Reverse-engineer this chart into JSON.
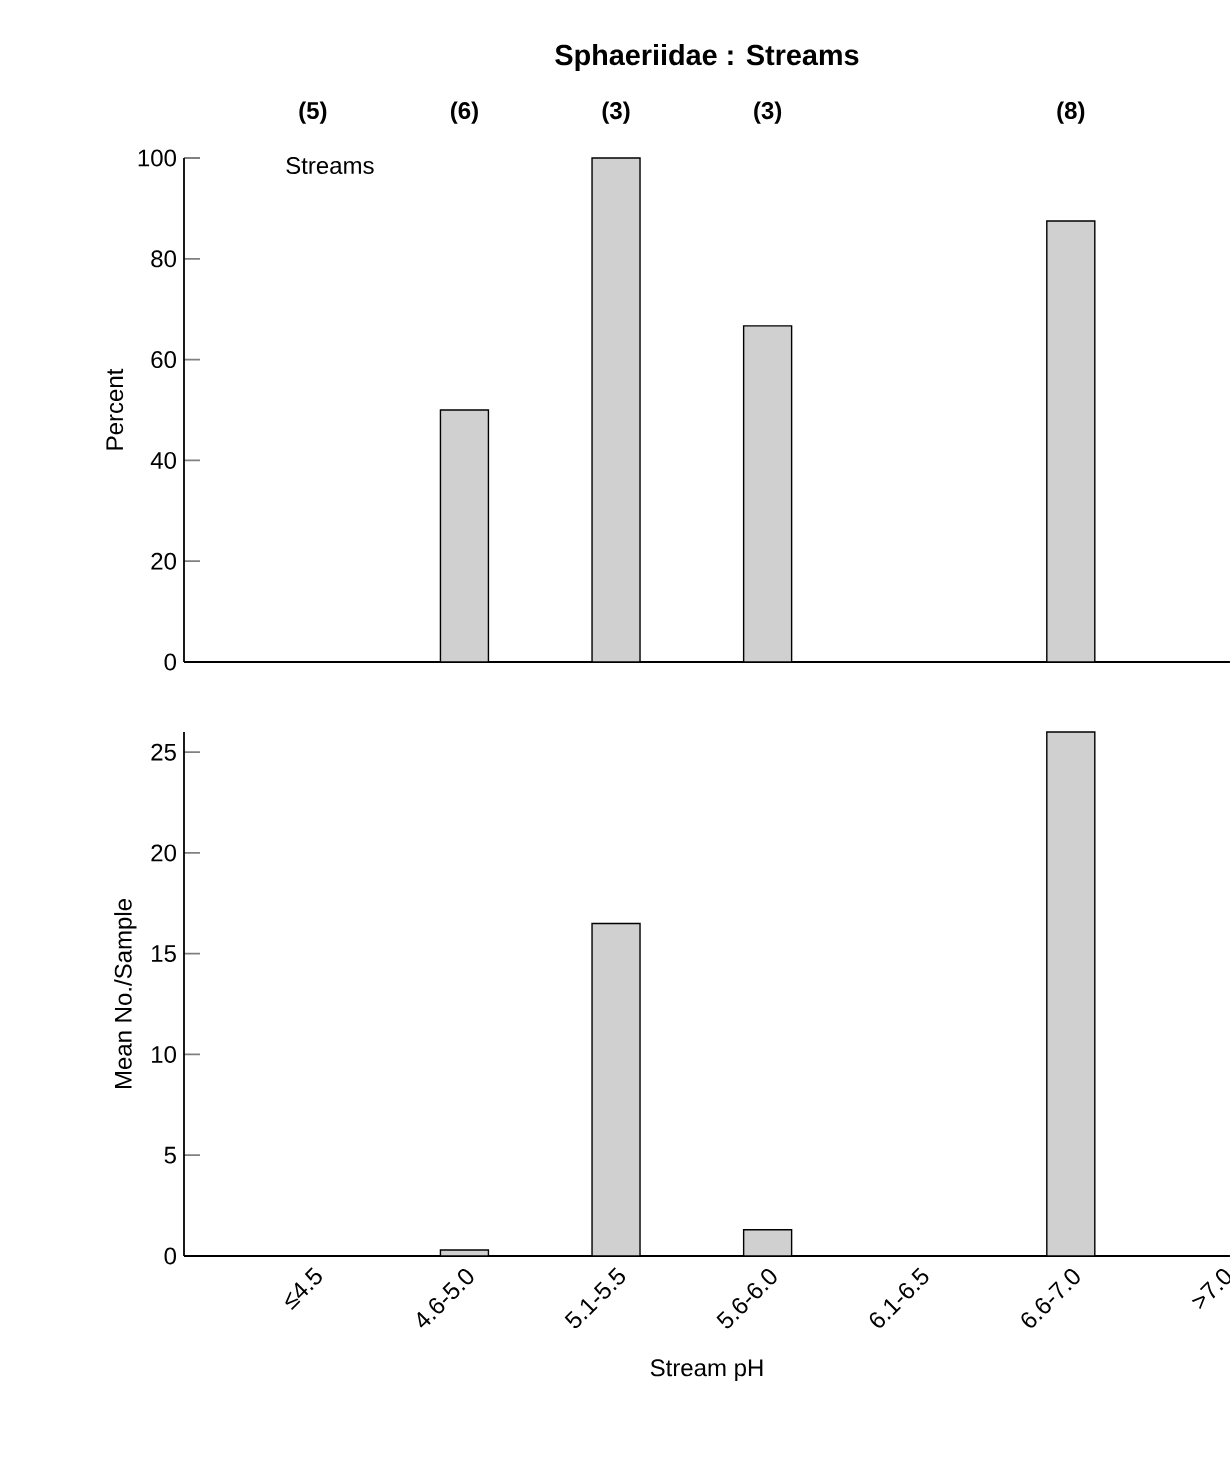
{
  "chart_data": [
    {
      "type": "bar",
      "title": "Sphaeriidae : Streams",
      "ylabel": "Percent",
      "categories": [
        null,
        null,
        null,
        null,
        null,
        null,
        null
      ],
      "values": [
        0,
        50,
        100,
        66.7,
        0,
        87.5,
        0
      ],
      "color": "#d0d0d0",
      "ylim": [
        0,
        100
      ],
      "yticks": [
        0,
        20,
        40,
        60,
        80,
        100
      ],
      "tick_labels": "y",
      "annotations": [
        "(5)",
        "(6)",
        "(3)",
        "(3)",
        "(8)",
        "Streams"
      ]
    },
    {
      "type": "bar",
      "ylabel": "Mean No./Sample",
      "xlabel": "Stream pH",
      "categories": [
        "≤4.5",
        "4.6-5.0",
        "5.1-5.5",
        "5.6-6.0",
        "6.1-6.5",
        "6.6-7.0",
        ">7.0"
      ],
      "values": [
        0,
        0.3,
        16.5,
        1.3,
        0,
        26,
        0
      ],
      "color": "#d0d0d0",
      "ylim": [
        0,
        26
      ],
      "yticks": [
        0,
        5,
        10,
        15,
        20,
        25
      ]
    }
  ]
}
